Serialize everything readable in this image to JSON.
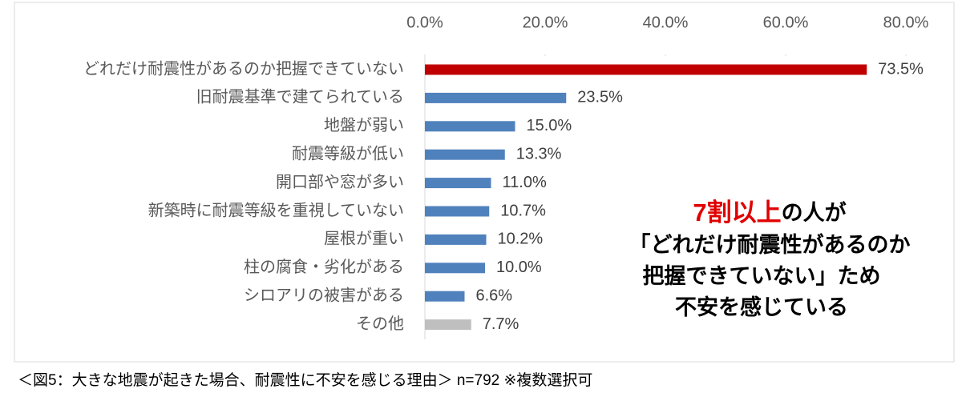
{
  "chart_data": {
    "type": "bar",
    "orientation": "horizontal",
    "categories": [
      "どれだけ耐震性があるのか把握できていない",
      "旧耐震基準で建てられている",
      "地盤が弱い",
      "耐震等級が低い",
      "開口部や窓が多い",
      "新築時に耐震等級を重視していない",
      "屋根が重い",
      "柱の腐食・劣化がある",
      "シロアリの被害がある",
      "その他"
    ],
    "values": [
      73.5,
      23.5,
      15.0,
      13.3,
      11.0,
      10.7,
      10.2,
      10.0,
      6.6,
      7.7
    ],
    "value_labels": [
      "73.5%",
      "23.5%",
      "15.0%",
      "13.3%",
      "11.0%",
      "10.7%",
      "10.2%",
      "10.0%",
      "6.6%",
      "7.7%"
    ],
    "colors": [
      "#c00000",
      "#4f81bd",
      "#4f81bd",
      "#4f81bd",
      "#4f81bd",
      "#4f81bd",
      "#4f81bd",
      "#4f81bd",
      "#4f81bd",
      "#bfbfbf"
    ],
    "xlim": [
      0,
      80
    ],
    "xticks": [
      {
        "value": 0,
        "label": "0.0%"
      },
      {
        "value": 20,
        "label": "20.0%"
      },
      {
        "value": 40,
        "label": "40.0%"
      },
      {
        "value": 60,
        "label": "60.0%"
      },
      {
        "value": 80,
        "label": "80.0%"
      }
    ],
    "annotation": {
      "highlight": "7割以上",
      "lines": [
        "の人が",
        "「どれだけ耐震性があるのか",
        "把握できていない」ため",
        "不安を感じている"
      ]
    },
    "caption": "＜図5：大きな地震が起きた場合、耐震性に不安を感じる理由＞ n=792 ※複数選択可"
  }
}
